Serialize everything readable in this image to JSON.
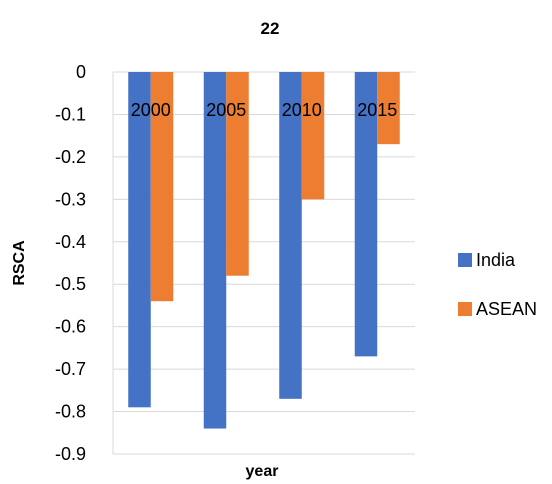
{
  "chart_data": {
    "type": "bar",
    "title": "22",
    "xlabel": "year",
    "ylabel": "RSCA",
    "categories": [
      "2000",
      "2005",
      "2010",
      "2015"
    ],
    "series": [
      {
        "name": "India",
        "values": [
          -0.79,
          -0.84,
          -0.77,
          -0.67
        ],
        "color": "#4472C4"
      },
      {
        "name": "ASEAN",
        "values": [
          -0.54,
          -0.48,
          -0.3,
          -0.17
        ],
        "color": "#ED7D31"
      }
    ],
    "ylim": [
      -0.9,
      0
    ],
    "yticks": [
      0,
      -0.1,
      -0.2,
      -0.3,
      -0.4,
      -0.5,
      -0.6,
      -0.7,
      -0.8,
      -0.9
    ],
    "grid": true,
    "legend_position": "right",
    "gridline_color": "#D9D9D9"
  }
}
